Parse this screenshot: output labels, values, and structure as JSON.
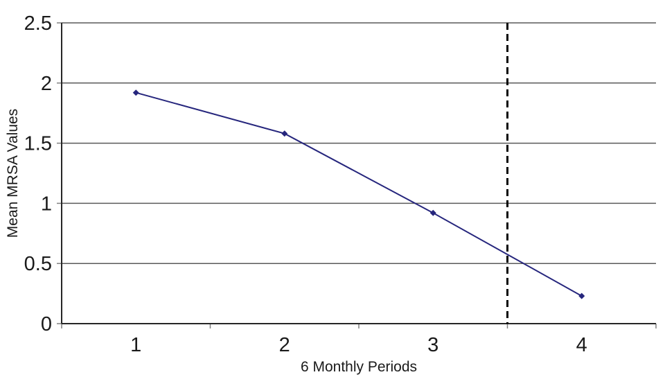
{
  "chart_data": {
    "type": "line",
    "categories": [
      "1",
      "2",
      "3",
      "4"
    ],
    "series": [
      {
        "name": "Mean MRSA Values",
        "values": [
          1.92,
          1.58,
          0.92,
          0.23
        ],
        "color": "#26267d",
        "marker": "diamond",
        "marker_size": 4.5,
        "line_width": 2
      }
    ],
    "title": "",
    "xlabel": "6 Monthly Periods",
    "ylabel": "Mean MRSA Values",
    "ylim": [
      0,
      2.5
    ],
    "y_ticks": [
      0,
      0.5,
      1,
      1.5,
      2,
      2.5
    ],
    "y_tick_labels": [
      "0",
      "0.5",
      "1",
      "1.5",
      "2",
      "2.5"
    ],
    "grid": "horizontal",
    "legend": "none",
    "annotations": [
      {
        "type": "vline",
        "x": 3.5,
        "style": "dashed",
        "color": "#000000",
        "width": 3,
        "dash": "10 6"
      }
    ],
    "colors": {
      "background": "#ffffff",
      "gridline": "#595959",
      "axis": "#262626",
      "tick": "#808080",
      "text": "#1a1a1a"
    }
  }
}
